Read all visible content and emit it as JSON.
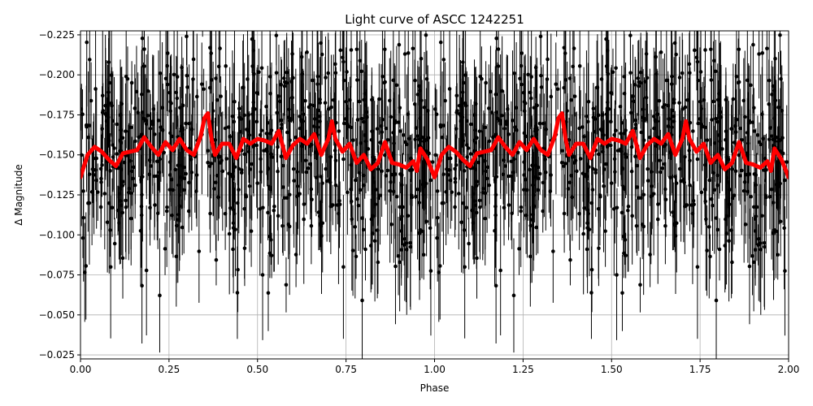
{
  "chart_data": {
    "type": "scatter",
    "title": "Light curve of ASCC 1242251",
    "xlabel": "Phase",
    "ylabel": "Δ Magnitude",
    "xlim": [
      0.0,
      2.0
    ],
    "ylim": [
      -0.2275,
      -0.0225
    ],
    "y_inverted": true,
    "grid": true,
    "xticks": [
      "0.00",
      "0.25",
      "0.50",
      "0.75",
      "1.00",
      "1.25",
      "1.50",
      "1.75",
      "2.00"
    ],
    "xtick_values": [
      0.0,
      0.25,
      0.5,
      0.75,
      1.0,
      1.25,
      1.5,
      1.75,
      2.0
    ],
    "yticks": [
      "−0.225",
      "−0.200",
      "−0.175",
      "−0.150",
      "−0.125",
      "−0.100",
      "−0.075",
      "−0.050",
      "−0.025"
    ],
    "ytick_values": [
      -0.225,
      -0.2,
      -0.175,
      -0.15,
      -0.125,
      -0.1,
      -0.075,
      -0.05,
      -0.025
    ],
    "series": [
      {
        "kind": "points_with_errorbars",
        "color": "#000000",
        "y_center": -0.145,
        "y_scatter": 0.045,
        "errorbar_typical": 0.03,
        "n_points_per_phase_cycle": 700
      },
      {
        "kind": "binned_curve",
        "color": "#ff0000",
        "x": [
          0.0,
          0.02,
          0.04,
          0.06,
          0.08,
          0.1,
          0.12,
          0.14,
          0.16,
          0.18,
          0.2,
          0.22,
          0.24,
          0.26,
          0.28,
          0.3,
          0.32,
          0.34,
          0.35,
          0.36,
          0.37,
          0.38,
          0.4,
          0.42,
          0.44,
          0.46,
          0.48,
          0.5,
          0.52,
          0.54,
          0.56,
          0.58,
          0.6,
          0.62,
          0.64,
          0.66,
          0.68,
          0.7,
          0.71,
          0.72,
          0.74,
          0.76,
          0.78,
          0.8,
          0.82,
          0.84,
          0.86,
          0.88,
          0.9,
          0.92,
          0.94,
          0.95,
          0.96,
          0.98,
          1.0
        ],
        "y": [
          -0.136,
          -0.15,
          -0.155,
          -0.152,
          -0.147,
          -0.143,
          -0.151,
          -0.152,
          -0.153,
          -0.161,
          -0.155,
          -0.15,
          -0.158,
          -0.153,
          -0.16,
          -0.153,
          -0.15,
          -0.162,
          -0.173,
          -0.176,
          -0.16,
          -0.15,
          -0.157,
          -0.157,
          -0.148,
          -0.16,
          -0.157,
          -0.16,
          -0.159,
          -0.157,
          -0.165,
          -0.148,
          -0.156,
          -0.16,
          -0.157,
          -0.163,
          -0.15,
          -0.16,
          -0.171,
          -0.16,
          -0.152,
          -0.157,
          -0.145,
          -0.15,
          -0.141,
          -0.145,
          -0.158,
          -0.145,
          -0.144,
          -0.142,
          -0.146,
          -0.14,
          -0.154,
          -0.147,
          -0.136
        ]
      }
    ]
  }
}
